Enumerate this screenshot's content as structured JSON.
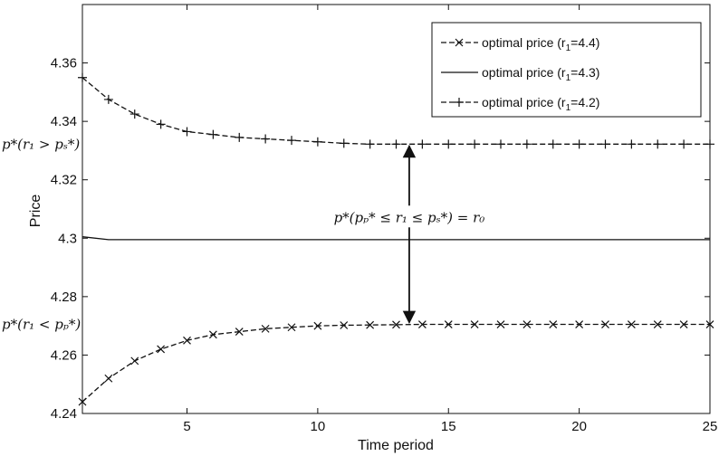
{
  "chart_data": {
    "type": "line",
    "xlabel": "Time period",
    "ylabel": "Price",
    "xlim": [
      1,
      25
    ],
    "ylim": [
      4.24,
      4.38
    ],
    "xticks": [
      5,
      10,
      15,
      20,
      25
    ],
    "yticks": [
      4.24,
      4.26,
      4.28,
      4.3,
      4.32,
      4.34,
      4.36
    ],
    "ytick_labels": [
      "4.24",
      "4.26",
      "4.28",
      "4.3",
      "4.32",
      "4.34",
      "4.36"
    ],
    "grid": false,
    "legend_position": "top-right",
    "x": [
      1,
      2,
      3,
      4,
      5,
      6,
      7,
      8,
      9,
      10,
      11,
      12,
      13,
      14,
      15,
      16,
      17,
      18,
      19,
      20,
      21,
      22,
      23,
      24,
      25
    ],
    "series": [
      {
        "name": "optimal price  (r_1=4.4)",
        "legend_main": "optimal price  (r",
        "legend_sub": "1",
        "legend_tail": "=4.4)",
        "line_style": "dashed",
        "marker": "x",
        "values": [
          4.244,
          4.252,
          4.258,
          4.262,
          4.265,
          4.267,
          4.268,
          4.269,
          4.2695,
          4.27,
          4.2702,
          4.2703,
          4.2704,
          4.2705,
          4.2705,
          4.2705,
          4.2705,
          4.2705,
          4.2705,
          4.2705,
          4.2705,
          4.2705,
          4.2705,
          4.2705,
          4.2705
        ]
      },
      {
        "name": "optimal price  (r_1=4.3)",
        "legend_main": "optimal price  (r",
        "legend_sub": "1",
        "legend_tail": "=4.3)",
        "line_style": "solid",
        "marker": "none",
        "values": [
          4.3005,
          4.2995,
          4.2995,
          4.2995,
          4.2995,
          4.2995,
          4.2995,
          4.2995,
          4.2995,
          4.2995,
          4.2995,
          4.2995,
          4.2995,
          4.2995,
          4.2995,
          4.2995,
          4.2995,
          4.2995,
          4.2995,
          4.2995,
          4.2995,
          4.2995,
          4.2995,
          4.2995,
          4.2995
        ]
      },
      {
        "name": "optimal price  (r_1=4.2)",
        "legend_main": "optimal price  (r",
        "legend_sub": "1",
        "legend_tail": "=4.2)",
        "line_style": "dashed",
        "marker": "+",
        "values": [
          4.355,
          4.3475,
          4.3425,
          4.339,
          4.3365,
          4.3355,
          4.3345,
          4.334,
          4.3335,
          4.333,
          4.3325,
          4.3322,
          4.3322,
          4.3322,
          4.3322,
          4.3322,
          4.3322,
          4.3322,
          4.3322,
          4.3322,
          4.3322,
          4.3322,
          4.3322,
          4.3322,
          4.3322
        ]
      }
    ],
    "annotations": {
      "upper": {
        "text": "p*(r₁ > pₛ*)",
        "y": 4.3322
      },
      "lower": {
        "text": "p*(r₁ < pₚ*)",
        "y": 4.2705
      },
      "middle": {
        "text": "p*(pₚ* ≤ r₁ ≤ pₛ*) = r₀",
        "y": 4.3
      },
      "arrow_x": 13.5,
      "arrow_from": 4.3322,
      "arrow_to": 4.2705
    }
  }
}
